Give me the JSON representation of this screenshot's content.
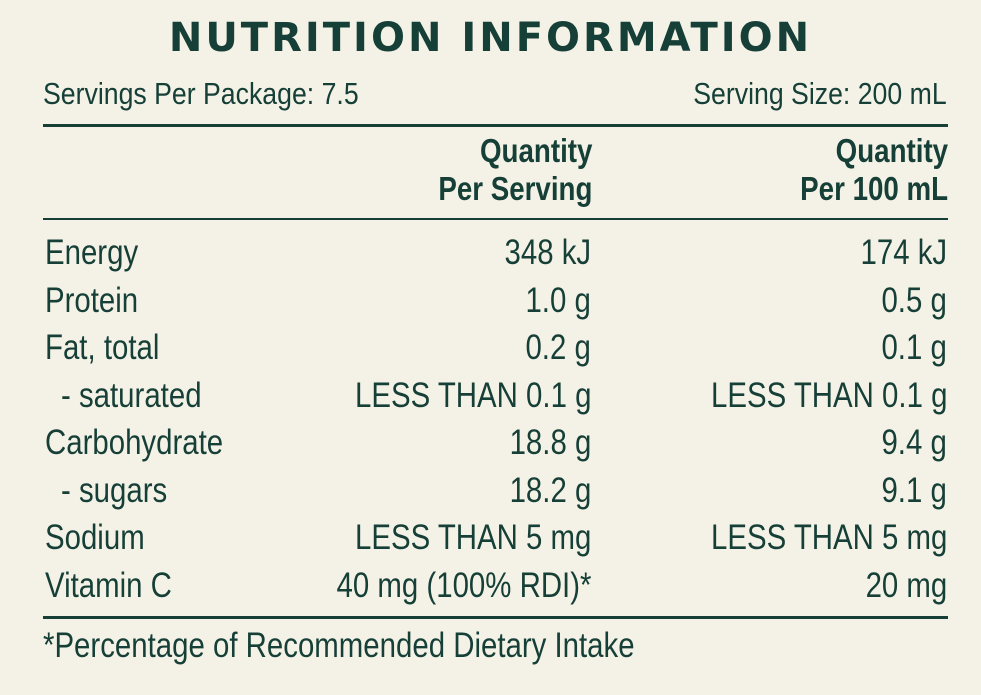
{
  "title": "NUTRITION INFORMATION",
  "servings_per_package": "Servings Per Package: 7.5",
  "serving_size": "Serving Size: 200 mL",
  "headers": {
    "per_serving_line1": "Quantity",
    "per_serving_line2": "Per Serving",
    "per_100_line1": "Quantity",
    "per_100_line2": "Per 100 mL"
  },
  "rows": [
    {
      "name": "Energy",
      "per_serving": "348 kJ",
      "per_100": "174 kJ",
      "sub": false
    },
    {
      "name": "Protein",
      "per_serving": "1.0 g",
      "per_100": "0.5 g",
      "sub": false
    },
    {
      "name": "Fat, total",
      "per_serving": "0.2 g",
      "per_100": "0.1 g",
      "sub": false
    },
    {
      "name": "- saturated",
      "per_serving": "LESS THAN 0.1 g",
      "per_100": "LESS THAN 0.1 g",
      "sub": true
    },
    {
      "name": "Carbohydrate",
      "per_serving": "18.8 g",
      "per_100": "9.4 g",
      "sub": false
    },
    {
      "name": "- sugars",
      "per_serving": "18.2 g",
      "per_100": "9.1 g",
      "sub": true
    },
    {
      "name": "Sodium",
      "per_serving": "LESS THAN 5 mg",
      "per_100": "LESS THAN 5 mg",
      "sub": false
    },
    {
      "name": "Vitamin C",
      "per_serving": "40 mg (100% RDI)*",
      "per_100": "20 mg",
      "sub": false
    }
  ],
  "footnote": "*Percentage of Recommended Dietary Intake",
  "colors": {
    "background": "#f4f2e6",
    "text": "#163f37"
  }
}
